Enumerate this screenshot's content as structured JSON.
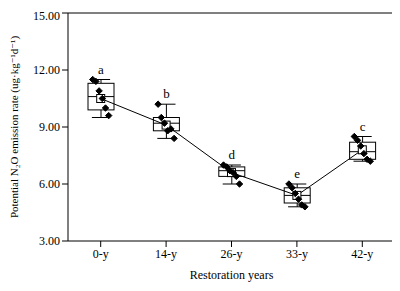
{
  "chart_data": {
    "type": "box",
    "x_label": "Restoration years",
    "y_label": "Potential N₂O emission rate (ug·kg⁻¹d⁻¹)",
    "categories": [
      "0-y",
      "14-y",
      "26-y",
      "33-y",
      "42-y"
    ],
    "boxes": [
      {
        "whisker_low": 9.5,
        "q1": 9.9,
        "median": 10.6,
        "q3": 11.3,
        "whisker_high": 11.5,
        "mean": 10.5,
        "points": [
          11.5,
          11.4,
          10.9,
          10.5,
          10.0,
          9.6
        ],
        "letter": "a"
      },
      {
        "whisker_low": 8.4,
        "q1": 8.8,
        "median": 9.2,
        "q3": 9.5,
        "whisker_high": 10.2,
        "mean": 9.1,
        "points": [
          10.2,
          9.5,
          9.2,
          8.8,
          8.9,
          8.4
        ],
        "letter": "b"
      },
      {
        "whisker_low": 6.0,
        "q1": 6.4,
        "median": 6.7,
        "q3": 6.9,
        "whisker_high": 7.0,
        "mean": 6.6,
        "points": [
          7.0,
          6.9,
          6.7,
          6.6,
          6.4,
          6.0
        ],
        "letter": "d"
      },
      {
        "whisker_low": 4.8,
        "q1": 5.0,
        "median": 5.4,
        "q3": 5.8,
        "whisker_high": 6.0,
        "mean": 5.4,
        "points": [
          6.0,
          5.8,
          5.5,
          5.2,
          4.9,
          4.8
        ],
        "letter": "e"
      },
      {
        "whisker_low": 7.2,
        "q1": 7.3,
        "median": 7.7,
        "q3": 8.2,
        "whisker_high": 8.5,
        "mean": 7.8,
        "points": [
          8.5,
          8.3,
          8.0,
          7.6,
          7.3,
          7.2
        ],
        "letter": "c"
      }
    ],
    "color": "#000000",
    "ylim": [
      3,
      15
    ],
    "yticks": [
      {
        "value": 3,
        "label": "3.00"
      },
      {
        "value": 6,
        "label": "6.00"
      },
      {
        "value": 9,
        "label": "9.00"
      },
      {
        "value": 12,
        "label": "12.00"
      },
      {
        "value": 15,
        "label": "15.00"
      }
    ]
  }
}
